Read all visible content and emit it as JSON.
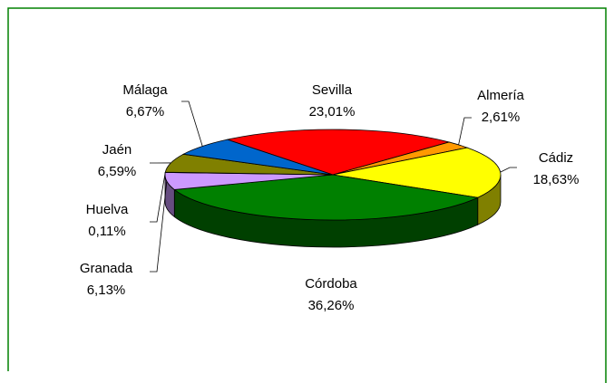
{
  "chart_data": {
    "type": "pie3d",
    "categories": [
      "Sevilla",
      "Almería",
      "Cádiz",
      "Córdoba",
      "Granada",
      "Huelva",
      "Jaén",
      "Málaga"
    ],
    "values": [
      23.01,
      2.61,
      18.63,
      36.26,
      6.13,
      0.11,
      6.59,
      6.67
    ],
    "value_labels": [
      "23,01%",
      "2,61%",
      "18,63%",
      "36,26%",
      "6,13%",
      "0,11%",
      "6,59%",
      "6,67%"
    ],
    "colors": [
      "#ff0000",
      "#ff9900",
      "#ffff00",
      "#008000",
      "#cc99ff",
      "#99ccff",
      "#808000",
      "#0066cc"
    ]
  }
}
